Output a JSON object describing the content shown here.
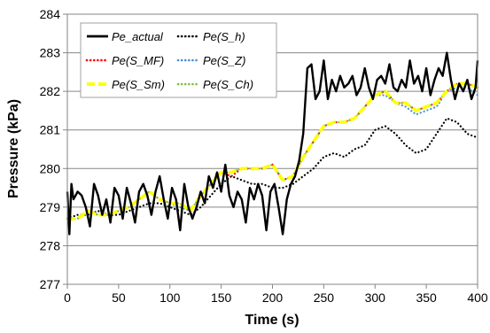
{
  "chart_data": {
    "type": "line",
    "title": "",
    "xlabel": "Time (s)",
    "ylabel": "Pressure (kPa)",
    "xlim": [
      0,
      400
    ],
    "ylim": [
      277,
      284
    ],
    "xticks": [
      0,
      50,
      100,
      150,
      200,
      250,
      300,
      350,
      400
    ],
    "yticks": [
      277,
      278,
      279,
      280,
      281,
      282,
      283,
      284
    ],
    "grid": "horizontal",
    "legend_position": "top-left",
    "series": [
      {
        "name": "Pe_actual",
        "color": "#000000",
        "style": "solid",
        "x": [
          0,
          2,
          4,
          6,
          8,
          10,
          14,
          18,
          22,
          26,
          30,
          34,
          38,
          42,
          46,
          50,
          54,
          58,
          62,
          66,
          70,
          74,
          78,
          82,
          86,
          90,
          94,
          98,
          102,
          106,
          110,
          114,
          118,
          122,
          126,
          130,
          134,
          138,
          142,
          146,
          150,
          154,
          158,
          162,
          166,
          170,
          174,
          178,
          182,
          186,
          190,
          194,
          198,
          202,
          206,
          210,
          214,
          218,
          222,
          226,
          230,
          234,
          238,
          242,
          246,
          250,
          254,
          258,
          262,
          266,
          270,
          274,
          278,
          282,
          286,
          290,
          294,
          298,
          302,
          306,
          310,
          314,
          318,
          322,
          326,
          330,
          334,
          338,
          342,
          346,
          350,
          354,
          358,
          362,
          366,
          370,
          374,
          378,
          382,
          386,
          390,
          394,
          398,
          400
        ],
        "y": [
          279.4,
          278.3,
          279.6,
          279.2,
          279.3,
          279.4,
          279.3,
          279.0,
          278.5,
          279.6,
          279.3,
          278.8,
          279.2,
          278.6,
          279.5,
          279.3,
          278.7,
          279.5,
          279.1,
          278.6,
          279.4,
          279.6,
          279.3,
          278.8,
          279.4,
          279.8,
          279.2,
          278.7,
          279.5,
          279.2,
          278.4,
          279.6,
          279.0,
          278.7,
          279.0,
          279.4,
          279.1,
          279.8,
          279.5,
          279.9,
          279.4,
          280.1,
          279.3,
          279.0,
          279.4,
          279.2,
          278.6,
          279.5,
          279.2,
          279.6,
          279.3,
          278.4,
          279.4,
          279.6,
          279.0,
          278.3,
          279.2,
          279.6,
          279.8,
          280.2,
          280.9,
          282.6,
          282.7,
          281.8,
          282.0,
          282.8,
          281.8,
          282.3,
          282.0,
          282.4,
          282.1,
          282.2,
          282.4,
          281.9,
          282.1,
          282.6,
          282.1,
          281.8,
          282.3,
          282.4,
          282.2,
          282.7,
          282.1,
          282.0,
          282.3,
          282.1,
          282.8,
          282.2,
          282.4,
          282.0,
          282.6,
          281.9,
          282.3,
          282.6,
          282.4,
          283.0,
          282.3,
          281.8,
          282.2,
          282.0,
          282.3,
          281.8,
          282.1,
          282.8
        ]
      },
      {
        "name": "Pe(S_h)",
        "color": "#000000",
        "style": "dotted",
        "x": [
          0,
          10,
          20,
          30,
          40,
          50,
          60,
          70,
          80,
          90,
          100,
          110,
          120,
          130,
          140,
          150,
          160,
          170,
          180,
          190,
          200,
          210,
          220,
          230,
          240,
          250,
          260,
          270,
          280,
          290,
          300,
          310,
          320,
          330,
          340,
          350,
          360,
          370,
          380,
          390,
          400
        ],
        "y": [
          278.7,
          278.8,
          278.8,
          278.9,
          278.8,
          278.8,
          278.9,
          279.0,
          279.1,
          279.1,
          279.0,
          278.9,
          278.8,
          279.0,
          279.3,
          279.6,
          279.8,
          279.7,
          279.6,
          279.6,
          279.5,
          279.5,
          279.6,
          279.8,
          280.0,
          280.3,
          280.4,
          280.3,
          280.5,
          280.6,
          281.0,
          281.1,
          280.9,
          280.6,
          280.4,
          280.5,
          280.9,
          281.3,
          281.2,
          280.9,
          280.8
        ]
      },
      {
        "name": "Pe(S_MF)",
        "color": "#ff0000",
        "style": "dotted",
        "x": [
          0,
          10,
          20,
          30,
          40,
          50,
          60,
          70,
          80,
          90,
          100,
          110,
          120,
          130,
          140,
          150,
          160,
          170,
          180,
          190,
          200,
          210,
          220,
          230,
          240,
          250,
          260,
          270,
          280,
          290,
          300,
          310,
          320,
          330,
          340,
          350,
          360,
          370,
          380,
          390,
          400
        ],
        "y": [
          278.7,
          278.7,
          278.9,
          278.8,
          278.8,
          278.9,
          279.0,
          279.2,
          279.4,
          279.2,
          279.1,
          279.1,
          278.9,
          279.3,
          279.6,
          279.9,
          279.8,
          280.0,
          280.0,
          280.0,
          280.1,
          279.7,
          279.8,
          280.3,
          280.7,
          281.1,
          281.2,
          281.2,
          281.3,
          281.6,
          281.9,
          282.0,
          281.7,
          281.7,
          281.5,
          281.6,
          281.7,
          282.0,
          282.2,
          282.2,
          282.1
        ]
      },
      {
        "name": "Pe(S_Z)",
        "color": "#4a90d9",
        "style": "dotted",
        "x": [
          0,
          10,
          20,
          30,
          40,
          50,
          60,
          70,
          80,
          90,
          100,
          110,
          120,
          130,
          140,
          150,
          160,
          170,
          180,
          190,
          200,
          210,
          220,
          230,
          240,
          250,
          260,
          270,
          280,
          290,
          300,
          310,
          320,
          330,
          340,
          350,
          360,
          370,
          380,
          390,
          400
        ],
        "y": [
          278.7,
          278.7,
          278.9,
          278.8,
          278.8,
          278.9,
          279.0,
          279.2,
          279.4,
          279.2,
          279.1,
          279.0,
          278.9,
          279.3,
          279.6,
          279.9,
          279.9,
          280.0,
          280.0,
          280.0,
          280.1,
          279.7,
          279.8,
          280.3,
          280.7,
          281.1,
          281.2,
          281.2,
          281.3,
          281.6,
          281.9,
          281.9,
          281.7,
          281.6,
          281.4,
          281.5,
          281.6,
          282.0,
          282.1,
          282.1,
          281.9
        ]
      },
      {
        "name": "Pe(S_Sm)",
        "color": "#ffff00",
        "style": "dashed",
        "x": [
          0,
          10,
          20,
          30,
          40,
          50,
          60,
          70,
          80,
          90,
          100,
          110,
          120,
          130,
          140,
          150,
          160,
          170,
          180,
          190,
          200,
          210,
          220,
          230,
          240,
          250,
          260,
          270,
          280,
          290,
          300,
          310,
          320,
          330,
          340,
          350,
          360,
          370,
          380,
          390,
          400
        ],
        "y": [
          278.7,
          278.7,
          278.9,
          278.8,
          278.8,
          278.9,
          279.0,
          279.2,
          279.4,
          279.2,
          279.1,
          279.1,
          278.9,
          279.3,
          279.6,
          279.9,
          279.9,
          280.0,
          280.0,
          280.0,
          280.1,
          279.7,
          279.8,
          280.3,
          280.7,
          281.1,
          281.2,
          281.2,
          281.3,
          281.6,
          281.9,
          282.0,
          281.7,
          281.7,
          281.5,
          281.6,
          281.7,
          282.0,
          282.2,
          282.2,
          282.1
        ]
      },
      {
        "name": "Pe(S_Ch)",
        "color": "#7fbf3f",
        "style": "dotted",
        "x": [
          0,
          10,
          20,
          30,
          40,
          50,
          60,
          70,
          80,
          90,
          100,
          110,
          120,
          130,
          140,
          150,
          160,
          170,
          180,
          190,
          200,
          210,
          220,
          230,
          240,
          250,
          260,
          270,
          280,
          290,
          300,
          310,
          320,
          330,
          340,
          350,
          360,
          370,
          380,
          390,
          400
        ],
        "y": [
          278.7,
          278.7,
          278.9,
          278.8,
          278.8,
          278.9,
          279.0,
          279.2,
          279.4,
          279.2,
          279.1,
          279.1,
          278.9,
          279.3,
          279.6,
          279.9,
          279.9,
          280.0,
          280.0,
          280.0,
          280.1,
          279.7,
          279.8,
          280.3,
          280.7,
          281.1,
          281.2,
          281.2,
          281.3,
          281.6,
          281.9,
          282.0,
          281.7,
          281.7,
          281.5,
          281.6,
          281.7,
          282.0,
          282.2,
          282.2,
          282.1
        ]
      }
    ]
  }
}
